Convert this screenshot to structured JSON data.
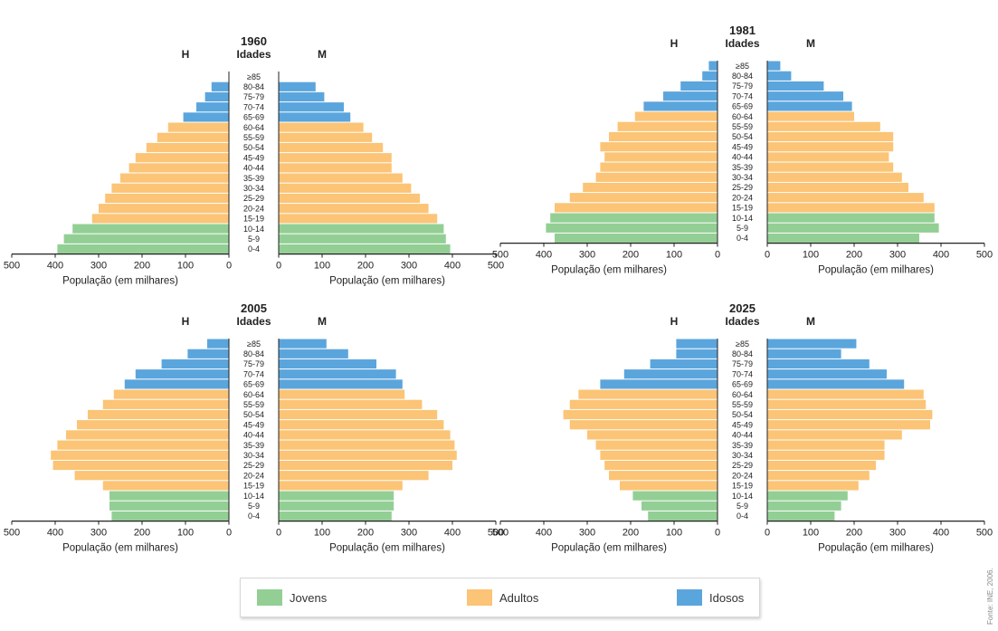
{
  "colors": {
    "jovens": "#93cf95",
    "adultos": "#fbc476",
    "idosos": "#5ba5dd",
    "axis": "#222222"
  },
  "legend": {
    "items": [
      {
        "key": "jovens",
        "label": "Jovens"
      },
      {
        "key": "adultos",
        "label": "Adultos"
      },
      {
        "key": "idosos",
        "label": "Idosos"
      }
    ]
  },
  "source": "Fonte: INE, 2006.",
  "chart_data": [
    {
      "type": "bar",
      "orientation": "population-pyramid",
      "title": "1960",
      "center_label": "Idades",
      "left_label": "H",
      "right_label": "M",
      "xlabel": "População (em milhares)",
      "xlim": [
        0,
        500
      ],
      "xticks": [
        500,
        400,
        300,
        200,
        100,
        0
      ],
      "categories": [
        "≥85",
        "80-84",
        "75-79",
        "70-74",
        "65-69",
        "60-64",
        "55-59",
        "50-54",
        "45-49",
        "40-44",
        "35-39",
        "30-34",
        "25-29",
        "20-24",
        "15-19",
        "10-14",
        "5-9",
        "0-4"
      ],
      "group_of_category": [
        "idosos",
        "idosos",
        "idosos",
        "idosos",
        "idosos",
        "adultos",
        "adultos",
        "adultos",
        "adultos",
        "adultos",
        "adultos",
        "adultos",
        "adultos",
        "adultos",
        "adultos",
        "jovens",
        "jovens",
        "jovens"
      ],
      "series": [
        {
          "name": "H",
          "values": [
            0,
            40,
            55,
            75,
            105,
            140,
            165,
            190,
            215,
            230,
            250,
            270,
            285,
            300,
            315,
            360,
            380,
            395
          ]
        },
        {
          "name": "M",
          "values": [
            0,
            85,
            105,
            150,
            165,
            195,
            215,
            240,
            260,
            260,
            285,
            305,
            325,
            345,
            365,
            380,
            385,
            395
          ]
        }
      ]
    },
    {
      "type": "bar",
      "orientation": "population-pyramid",
      "title": "1981",
      "center_label": "Idades",
      "left_label": "H",
      "right_label": "M",
      "xlabel": "População (em milhares)",
      "xlim": [
        0,
        500
      ],
      "xticks": [
        500,
        400,
        300,
        200,
        100,
        0
      ],
      "categories": [
        "≥85",
        "80-84",
        "75-79",
        "70-74",
        "65-69",
        "60-64",
        "55-59",
        "50-54",
        "45-49",
        "40-44",
        "35-39",
        "30-34",
        "25-29",
        "20-24",
        "15-19",
        "10-14",
        "5-9",
        "0-4"
      ],
      "group_of_category": [
        "idosos",
        "idosos",
        "idosos",
        "idosos",
        "idosos",
        "adultos",
        "adultos",
        "adultos",
        "adultos",
        "adultos",
        "adultos",
        "adultos",
        "adultos",
        "adultos",
        "adultos",
        "jovens",
        "jovens",
        "jovens"
      ],
      "series": [
        {
          "name": "H",
          "values": [
            20,
            35,
            85,
            125,
            170,
            190,
            230,
            250,
            270,
            260,
            270,
            280,
            310,
            340,
            375,
            385,
            395,
            375
          ]
        },
        {
          "name": "M",
          "values": [
            30,
            55,
            130,
            175,
            195,
            200,
            260,
            290,
            290,
            280,
            290,
            310,
            325,
            360,
            385,
            385,
            395,
            350
          ]
        }
      ]
    },
    {
      "type": "bar",
      "orientation": "population-pyramid",
      "title": "2005",
      "center_label": "Idades",
      "left_label": "H",
      "right_label": "M",
      "xlabel": "População (em milhares)",
      "xlim": [
        0,
        500
      ],
      "xticks": [
        500,
        400,
        300,
        200,
        100,
        0
      ],
      "categories": [
        "≥85",
        "80-84",
        "75-79",
        "70-74",
        "65-69",
        "60-64",
        "55-59",
        "50-54",
        "45-49",
        "40-44",
        "35-39",
        "30-34",
        "25-29",
        "20-24",
        "15-19",
        "10-14",
        "5-9",
        "0-4"
      ],
      "group_of_category": [
        "idosos",
        "idosos",
        "idosos",
        "idosos",
        "idosos",
        "adultos",
        "adultos",
        "adultos",
        "adultos",
        "adultos",
        "adultos",
        "adultos",
        "adultos",
        "adultos",
        "adultos",
        "jovens",
        "jovens",
        "jovens"
      ],
      "series": [
        {
          "name": "H",
          "values": [
            50,
            95,
            155,
            215,
            240,
            265,
            290,
            325,
            350,
            375,
            395,
            410,
            405,
            355,
            290,
            275,
            275,
            270
          ]
        },
        {
          "name": "M",
          "values": [
            110,
            160,
            225,
            270,
            285,
            290,
            330,
            365,
            380,
            395,
            405,
            410,
            400,
            345,
            285,
            265,
            265,
            260
          ]
        }
      ]
    },
    {
      "type": "bar",
      "orientation": "population-pyramid",
      "title": "2025",
      "center_label": "Idades",
      "left_label": "H",
      "right_label": "M",
      "xlabel": "População (em milhares)",
      "xlim": [
        0,
        500
      ],
      "xticks": [
        500,
        400,
        300,
        200,
        100,
        0
      ],
      "categories": [
        "≥85",
        "80-84",
        "75-79",
        "70-74",
        "65-69",
        "60-64",
        "55-59",
        "50-54",
        "45-49",
        "40-44",
        "35-39",
        "30-34",
        "25-29",
        "20-24",
        "15-19",
        "10-14",
        "5-9",
        "0-4"
      ],
      "group_of_category": [
        "idosos",
        "idosos",
        "idosos",
        "idosos",
        "idosos",
        "adultos",
        "adultos",
        "adultos",
        "adultos",
        "adultos",
        "adultos",
        "adultos",
        "adultos",
        "adultos",
        "adultos",
        "jovens",
        "jovens",
        "jovens"
      ],
      "series": [
        {
          "name": "H",
          "values": [
            95,
            95,
            155,
            215,
            270,
            320,
            340,
            355,
            340,
            300,
            280,
            270,
            260,
            250,
            225,
            195,
            175,
            160
          ]
        },
        {
          "name": "M",
          "values": [
            205,
            170,
            235,
            275,
            315,
            360,
            365,
            380,
            375,
            310,
            270,
            270,
            250,
            235,
            210,
            185,
            170,
            155
          ]
        }
      ]
    }
  ]
}
